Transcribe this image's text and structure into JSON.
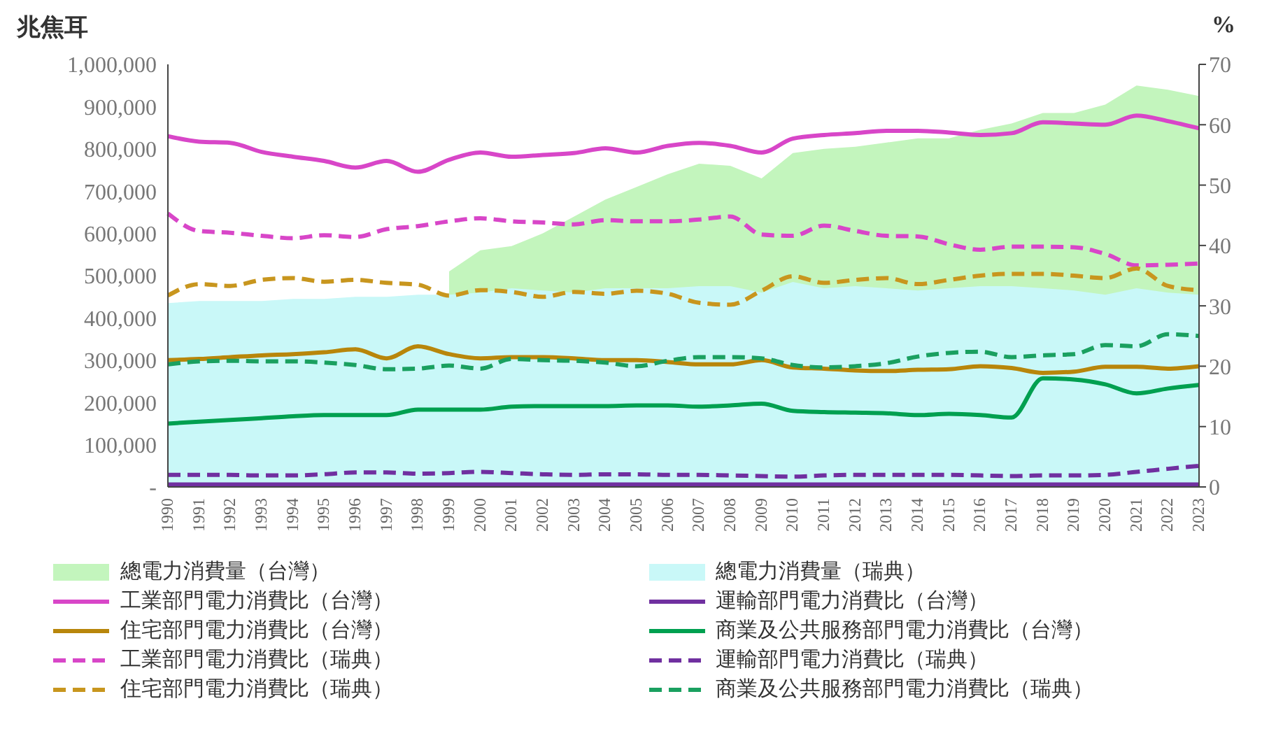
{
  "chart_data": {
    "type": "line",
    "ylabel": "兆焦耳",
    "y2label": "%",
    "categories": [
      "1990",
      "1991",
      "1992",
      "1993",
      "1994",
      "1995",
      "1996",
      "1997",
      "1998",
      "1999",
      "2000",
      "2001",
      "2002",
      "2003",
      "2004",
      "2005",
      "2006",
      "2007",
      "2008",
      "2009",
      "2010",
      "2011",
      "2012",
      "2013",
      "2014",
      "2015",
      "2016",
      "2017",
      "2018",
      "2019",
      "2020",
      "2021",
      "2022",
      "2023"
    ],
    "ylim": [
      0,
      1000000
    ],
    "yticks": [
      {
        "value": 0,
        "label": "-"
      },
      {
        "value": 100000,
        "label": "100,000"
      },
      {
        "value": 200000,
        "label": "200,000"
      },
      {
        "value": 300000,
        "label": "300,000"
      },
      {
        "value": 400000,
        "label": "400,000"
      },
      {
        "value": 500000,
        "label": "500,000"
      },
      {
        "value": 600000,
        "label": "600,000"
      },
      {
        "value": 700000,
        "label": "700,000"
      },
      {
        "value": 800000,
        "label": "800,000"
      },
      {
        "value": 900000,
        "label": "900,000"
      },
      {
        "value": 1000000,
        "label": "1,000,000"
      }
    ],
    "y2lim": [
      0,
      70
    ],
    "y2ticks": [
      0,
      10,
      20,
      30,
      40,
      50,
      60,
      70
    ],
    "legend": "bottom",
    "marker": "none",
    "series": [
      {
        "name": "總電力消費量（台灣）",
        "type": "area",
        "color": "#c3f5bd",
        "values": [
          null,
          null,
          null,
          null,
          null,
          null,
          null,
          null,
          null,
          510000,
          560000,
          570000,
          600000,
          640000,
          680000,
          710000,
          740000,
          765000,
          760000,
          730000,
          790000,
          800000,
          805000,
          815000,
          825000,
          825000,
          845000,
          860000,
          885000,
          885000,
          905000,
          950000,
          940000,
          925000
        ]
      },
      {
        "name": "總電力消費量（瑞典）",
        "type": "area",
        "color": "#c9f8f8",
        "values": [
          435000,
          440000,
          440000,
          440000,
          445000,
          445000,
          450000,
          450000,
          455000,
          455000,
          460000,
          470000,
          465000,
          460000,
          470000,
          470000,
          470000,
          475000,
          475000,
          460000,
          485000,
          470000,
          475000,
          470000,
          465000,
          470000,
          475000,
          475000,
          470000,
          465000,
          455000,
          470000,
          460000,
          455000
        ]
      },
      {
        "name": "工業部門電力消費比（台灣）",
        "axis": "y2",
        "line_style": "solid",
        "color": "#d846c8",
        "values": [
          58.1,
          57.2,
          57.0,
          55.5,
          54.7,
          54.0,
          52.9,
          54.0,
          52.2,
          54.2,
          55.4,
          54.7,
          55.0,
          55.3,
          56.1,
          55.4,
          56.5,
          57.0,
          56.5,
          55.4,
          57.7,
          58.3,
          58.6,
          59.0,
          59.0,
          58.7,
          58.3,
          58.6,
          60.4,
          60.2,
          60.0,
          61.5,
          60.6,
          59.4
        ]
      },
      {
        "name": "運輸部門電力消費比（台灣）",
        "axis": "y2",
        "line_style": "solid",
        "color": "#7030a0",
        "values": [
          0.4,
          0.4,
          0.4,
          0.4,
          0.4,
          0.4,
          0.4,
          0.4,
          0.4,
          0.4,
          0.4,
          0.4,
          0.4,
          0.4,
          0.4,
          0.4,
          0.4,
          0.4,
          0.4,
          0.4,
          0.4,
          0.4,
          0.4,
          0.4,
          0.4,
          0.4,
          0.4,
          0.4,
          0.4,
          0.4,
          0.4,
          0.4,
          0.4,
          0.4
        ]
      },
      {
        "name": "住宅部門電力消費比（台灣）",
        "axis": "y2",
        "line_style": "solid",
        "color": "#b8860b",
        "values": [
          21.0,
          21.2,
          21.5,
          21.8,
          22.0,
          22.3,
          22.8,
          21.3,
          23.3,
          22.0,
          21.3,
          21.5,
          21.5,
          21.3,
          21.0,
          21.0,
          20.7,
          20.3,
          20.3,
          21.0,
          19.8,
          19.6,
          19.3,
          19.2,
          19.4,
          19.5,
          20.0,
          19.7,
          18.9,
          19.1,
          19.9,
          19.9,
          19.6,
          20.0
        ]
      },
      {
        "name": "商業及公共服務部門電力消費比（台灣）",
        "axis": "y2",
        "line_style": "solid",
        "color": "#00a050",
        "values": [
          10.5,
          10.8,
          11.1,
          11.4,
          11.7,
          11.9,
          11.9,
          11.9,
          12.8,
          12.8,
          12.8,
          13.3,
          13.4,
          13.4,
          13.4,
          13.5,
          13.5,
          13.3,
          13.5,
          13.8,
          12.6,
          12.4,
          12.3,
          12.2,
          11.9,
          12.1,
          11.9,
          11.5,
          18.0,
          17.8,
          17.0,
          15.5,
          16.3,
          16.9
        ]
      },
      {
        "name": "工業部門電力消費比（瑞典）",
        "axis": "y2",
        "line_style": "dashed",
        "color": "#d846c8",
        "values": [
          45.3,
          42.4,
          42.1,
          41.6,
          41.2,
          41.7,
          41.4,
          42.7,
          43.2,
          44.0,
          44.5,
          44.0,
          43.8,
          43.5,
          44.2,
          44.0,
          44.0,
          44.3,
          44.8,
          41.8,
          41.6,
          43.3,
          42.4,
          41.6,
          41.5,
          40.2,
          39.3,
          39.8,
          39.8,
          39.7,
          38.6,
          36.7,
          36.8,
          37.0
        ]
      },
      {
        "name": "運輸部門電力消費比（瑞典）",
        "axis": "y2",
        "line_style": "dashed",
        "color": "#7030a0",
        "values": [
          2.0,
          2.0,
          2.0,
          1.9,
          1.9,
          2.1,
          2.4,
          2.4,
          2.2,
          2.3,
          2.5,
          2.3,
          2.1,
          2.0,
          2.1,
          2.1,
          2.0,
          2.0,
          1.9,
          1.8,
          1.7,
          1.9,
          2.0,
          2.0,
          2.0,
          2.0,
          1.9,
          1.8,
          1.9,
          1.9,
          2.0,
          2.5,
          3.0,
          3.5
        ]
      },
      {
        "name": "住宅部門電力消費比（瑞典）",
        "axis": "y2",
        "line_style": "dashed",
        "color": "#c8961e",
        "values": [
          31.7,
          33.6,
          33.3,
          34.3,
          34.6,
          34.0,
          34.3,
          33.8,
          33.5,
          31.7,
          32.6,
          32.3,
          31.5,
          32.3,
          32.0,
          32.5,
          32.0,
          30.5,
          30.2,
          32.5,
          34.9,
          33.8,
          34.3,
          34.6,
          33.6,
          34.3,
          35.0,
          35.3,
          35.3,
          35.0,
          34.6,
          36.2,
          33.3,
          32.6
        ]
      },
      {
        "name": "商業及公共服務部門電力消費比（瑞典）",
        "axis": "y2",
        "line_style": "dashed",
        "color": "#1aa060",
        "values": [
          20.3,
          20.8,
          20.9,
          20.8,
          20.8,
          20.6,
          20.2,
          19.5,
          19.6,
          20.1,
          19.6,
          21.2,
          21.0,
          20.9,
          20.6,
          20.0,
          20.9,
          21.5,
          21.5,
          21.3,
          20.2,
          19.8,
          20.0,
          20.5,
          21.6,
          22.2,
          22.4,
          21.5,
          21.8,
          22.0,
          23.5,
          23.3,
          25.3,
          25.0
        ]
      }
    ]
  }
}
